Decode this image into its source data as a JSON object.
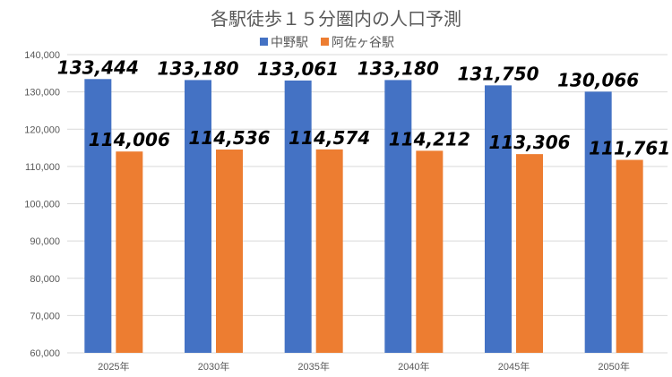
{
  "chart_data": {
    "type": "bar",
    "title": "各駅徒歩１５分圏内の人口予測",
    "categories": [
      "2025年",
      "2030年",
      "2035年",
      "2040年",
      "2045年",
      "2050年"
    ],
    "series": [
      {
        "name": "中野駅",
        "color": "#4472C4",
        "values": [
          133444,
          133180,
          133061,
          133180,
          131750,
          130066
        ],
        "labels": [
          "133,444",
          "133,180",
          "133,061",
          "133,180",
          "131,750",
          "130,066"
        ]
      },
      {
        "name": "阿佐ヶ谷駅",
        "color": "#ED7D31",
        "values": [
          114006,
          114536,
          114574,
          114212,
          113306,
          111761
        ],
        "labels": [
          "114,006",
          "114,536",
          "114,574",
          "114,212",
          "113,306",
          "111,761"
        ]
      }
    ],
    "ylim": [
      60000,
      140000
    ],
    "yticks": [
      60000,
      70000,
      80000,
      90000,
      100000,
      110000,
      120000,
      130000,
      140000
    ],
    "ytick_labels": [
      "60,000",
      "70,000",
      "80,000",
      "90,000",
      "100,000",
      "110,000",
      "120,000",
      "130,000",
      "140,000"
    ],
    "legend_position": "top",
    "grid": true,
    "xlabel": "",
    "ylabel": ""
  }
}
